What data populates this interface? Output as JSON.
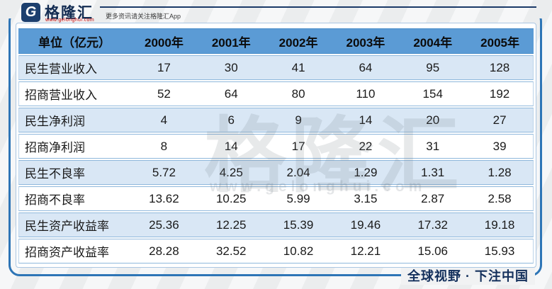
{
  "brand": {
    "name": "格隆汇",
    "logo_letter": "G",
    "website": "www.gelonghui.com",
    "tagline": "更多资讯请关注格隆汇App"
  },
  "watermark": {
    "text": "格隆汇",
    "website": "www.gelonghui.com"
  },
  "footer": {
    "slogan": "全球视野 · 下注中国"
  },
  "colors": {
    "header_bg": "#5b9bd5",
    "row_alt_bg": "#d9e7f5",
    "frame_border": "#2e75b6",
    "accent_navy": "#17355e",
    "logo_red": "#c00000",
    "grid_line": "#8fb8dc"
  },
  "chart_data": {
    "type": "table",
    "title": "单位（亿元）",
    "columns": [
      "单位（亿元）",
      "2000年",
      "2001年",
      "2002年",
      "2003年",
      "2004年",
      "2005年"
    ],
    "rows": [
      {
        "label": "民生营业收入",
        "values": [
          "17",
          "30",
          "41",
          "64",
          "95",
          "128"
        ]
      },
      {
        "label": "招商营业收入",
        "values": [
          "52",
          "64",
          "80",
          "110",
          "154",
          "192"
        ]
      },
      {
        "label": "民生净利润",
        "values": [
          "4",
          "6",
          "9",
          "14",
          "20",
          "27"
        ]
      },
      {
        "label": "招商净利润",
        "values": [
          "8",
          "14",
          "17",
          "22",
          "31",
          "39"
        ]
      },
      {
        "label": "民生不良率",
        "values": [
          "5.72",
          "4.25",
          "2.04",
          "1.29",
          "1.31",
          "1.28"
        ]
      },
      {
        "label": "招商不良率",
        "values": [
          "13.62",
          "10.25",
          "5.99",
          "3.15",
          "2.87",
          "2.58"
        ]
      },
      {
        "label": "民生资产收益率",
        "values": [
          "25.36",
          "12.25",
          "15.39",
          "19.46",
          "17.32",
          "19.18"
        ]
      },
      {
        "label": "招商资产收益率",
        "values": [
          "28.28",
          "32.52",
          "10.82",
          "12.21",
          "15.06",
          "15.93"
        ]
      }
    ]
  }
}
